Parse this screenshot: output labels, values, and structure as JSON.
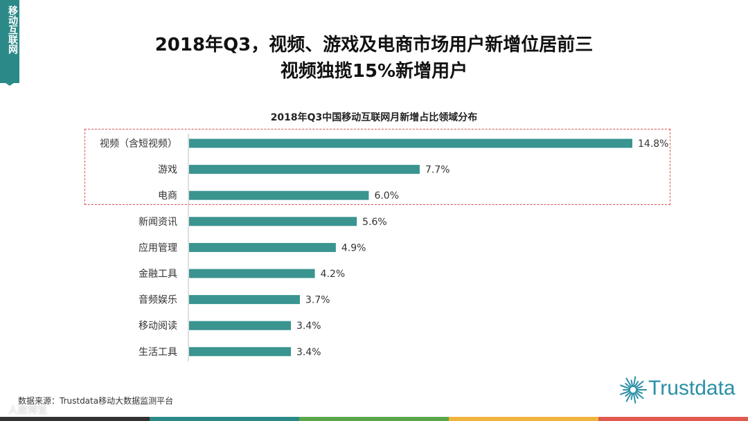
{
  "side_tab": {
    "label": "移动互联网"
  },
  "headline": {
    "line1": "2018年Q3，视频、游戏及电商市场用户新增位居前三",
    "line2": "视频独揽15%新增用户"
  },
  "chart_data": {
    "type": "bar",
    "orientation": "horizontal",
    "title": "2018年Q3中国移动互联网月新增占比领域分布",
    "categories": [
      "视频（含短视频）",
      "游戏",
      "电商",
      "新闻资讯",
      "应用管理",
      "金融工具",
      "音频娱乐",
      "移动阅读",
      "生活工具"
    ],
    "values": [
      14.8,
      7.7,
      6.0,
      5.6,
      4.9,
      4.2,
      3.7,
      3.4,
      3.4
    ],
    "value_labels": [
      "14.8%",
      "7.7%",
      "6.0%",
      "5.6%",
      "4.9%",
      "4.2%",
      "3.7%",
      "3.4%",
      "3.4%"
    ],
    "unit": "%",
    "xlim": [
      0,
      14.8
    ],
    "bar_color": "#3a9490",
    "highlight_color": "#d9534f",
    "highlighted_categories": [
      "视频（含短视频）",
      "游戏",
      "电商"
    ],
    "grid": false,
    "legend": "none"
  },
  "source": {
    "text": "数据来源：Trustdata移动大数据监测平台"
  },
  "watermark": {
    "text": "人数博览"
  },
  "logo": {
    "text": "Trustdata",
    "color": "#2b8fa6"
  },
  "colors": {
    "accent": "#2b8a87",
    "footer": [
      "#333333",
      "#2b8a87",
      "#5aa64a",
      "#f0b43c",
      "#e05a4f"
    ]
  }
}
